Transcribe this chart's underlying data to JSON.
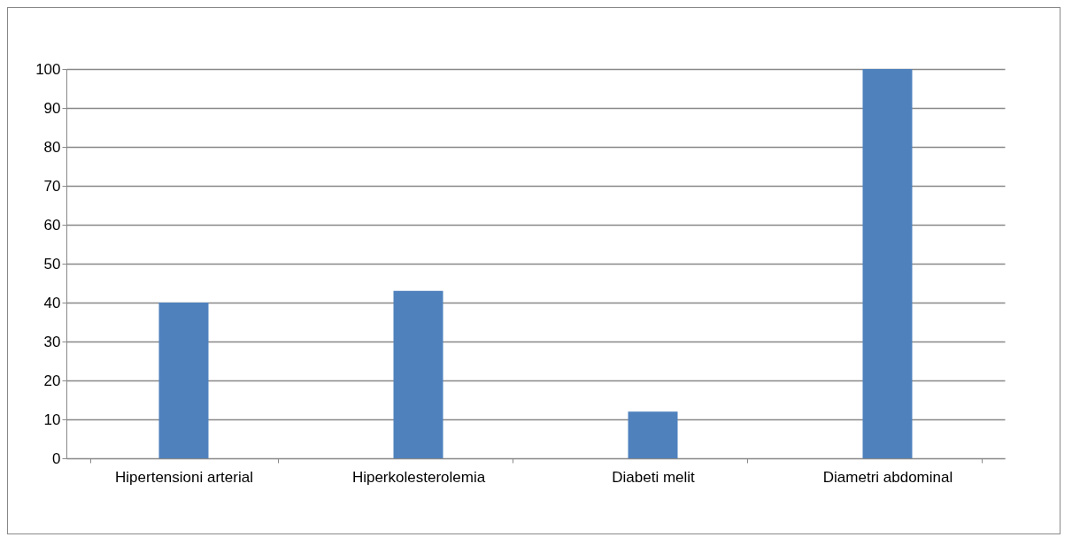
{
  "chart_data": {
    "type": "bar",
    "categories": [
      "Hipertensioni arterial",
      "Hiperkolesterolemia",
      "Diabeti melit",
      "Diametri abdominal"
    ],
    "values": [
      40,
      43,
      12,
      100
    ],
    "color": "#4f81bd",
    "ylim": [
      0,
      100
    ],
    "yticks": [
      0,
      10,
      20,
      30,
      40,
      50,
      60,
      70,
      80,
      90,
      100
    ],
    "grid": "y"
  }
}
